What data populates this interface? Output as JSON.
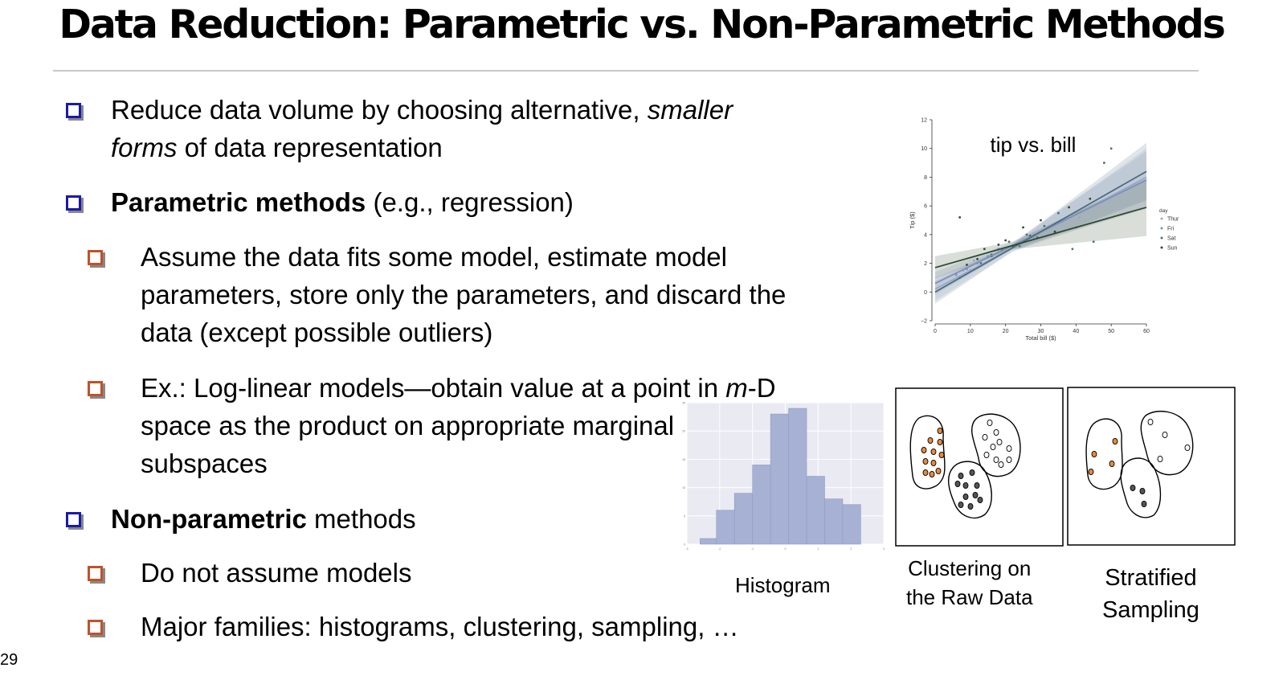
{
  "slide": {
    "title": "Data Reduction: Parametric vs. Non-Parametric Methods",
    "number": "29"
  },
  "bullets": {
    "b1": {
      "line1_pre": "Reduce data volume by choosing alternative, ",
      "line1_em": "smaller",
      "line2_em": "forms",
      "line2_post": " of data representation"
    },
    "b2": {
      "bold": "Parametric methods",
      "rest": " (e.g., regression)"
    },
    "b2a": {
      "line1": "Assume the data fits some model, estimate model",
      "line2": "parameters, store only the parameters, and discard the",
      "line3": "data (except possible outliers)"
    },
    "b2b": {
      "line1_pre": "Ex.: Log-linear models—obtain value at a point in ",
      "line1_em": "m",
      "line1_post": "-D",
      "line2": "space as the product on appropriate marginal",
      "line3": "subspaces"
    },
    "b3": {
      "bold": "Non-parametric",
      "rest": " methods"
    },
    "b3a": {
      "text": "Do not assume models"
    },
    "b3b": {
      "text": "Major families: histograms, clustering, sampling, …"
    }
  },
  "captions": {
    "histogram": "Histogram",
    "clustering_line1": "Clustering on",
    "clustering_line2": "the Raw Data",
    "stratified_line1": "Stratified",
    "stratified_line2": "Sampling"
  },
  "chart_data": [
    {
      "type": "scatter",
      "title": "tip vs. bill",
      "xlabel": "Total bill ($)",
      "ylabel": "Tip ($)",
      "xlim": [
        0,
        60
      ],
      "ylim": [
        -2,
        12
      ],
      "xticks": [
        0,
        10,
        20,
        30,
        40,
        50,
        60
      ],
      "yticks": [
        -2,
        0,
        2,
        4,
        6,
        8,
        10,
        12
      ],
      "legend_title": "day",
      "legend_placement": "right",
      "series": [
        {
          "name": "Thur",
          "color": "#9aa8c8",
          "fit": {
            "intercept": 0.2,
            "slope": 0.13
          },
          "x": [
            8,
            10,
            11,
            13,
            15,
            16,
            18,
            19,
            21,
            24,
            28,
            32,
            41
          ],
          "y": [
            1.5,
            1.8,
            2.2,
            2.0,
            2.4,
            2.6,
            2.8,
            3.0,
            3.1,
            3.5,
            4.0,
            4.4,
            5.2
          ]
        },
        {
          "name": "Fri",
          "color": "#7d8fbf",
          "fit": {
            "intercept": 0.6,
            "slope": 0.12
          },
          "x": [
            6,
            9,
            12,
            15,
            18,
            22,
            28,
            40
          ],
          "y": [
            1.2,
            1.6,
            2.0,
            2.5,
            3.0,
            3.2,
            3.8,
            4.5
          ]
        },
        {
          "name": "Sat",
          "color": "#4d6e7e",
          "fit": {
            "intercept": 0.0,
            "slope": 0.14
          },
          "x": [
            7,
            10,
            13,
            16,
            19,
            21,
            24,
            26,
            29,
            31,
            35,
            39,
            45,
            48,
            50
          ],
          "y": [
            1.0,
            1.5,
            2.0,
            2.6,
            2.9,
            3.5,
            3.2,
            4.0,
            3.8,
            4.6,
            5.5,
            3.0,
            3.5,
            9.0,
            10.0
          ]
        },
        {
          "name": "Sun",
          "color": "#2d4a2d",
          "fit": {
            "intercept": 1.7,
            "slope": 0.07
          },
          "x": [
            7,
            9,
            12,
            14,
            16,
            18,
            20,
            22,
            25,
            27,
            30,
            34,
            38,
            44
          ],
          "y": [
            5.2,
            1.9,
            2.3,
            3.0,
            2.5,
            3.3,
            3.6,
            3.2,
            4.5,
            3.9,
            5.0,
            4.2,
            5.9,
            6.5
          ]
        }
      ]
    },
    {
      "type": "bar",
      "title": "",
      "xlim": [
        -3,
        3
      ],
      "ylim": [
        0,
        25
      ],
      "x_bin_edges": [
        -2.6,
        -2.1,
        -1.55,
        -1.0,
        -0.45,
        0.1,
        0.65,
        1.2,
        1.75,
        2.3
      ],
      "values": [
        1,
        6,
        9,
        14,
        23,
        24,
        12,
        8,
        7
      ],
      "color": "#a6b1d3",
      "background": "#eaeaf2"
    }
  ],
  "clustering": {
    "colors": {
      "cluster_a": "#e8893a",
      "cluster_b": "#ffffff",
      "cluster_c": "#555555"
    }
  }
}
